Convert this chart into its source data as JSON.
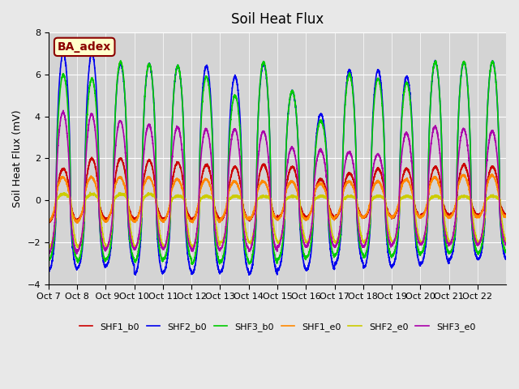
{
  "title": "Soil Heat Flux",
  "ylabel": "Soil Heat Flux (mV)",
  "ylim": [
    -4,
    8
  ],
  "yticks": [
    -4,
    -2,
    0,
    2,
    4,
    6,
    8
  ],
  "background_color": "#e8e8e8",
  "plot_bg_color": "#d4d4d4",
  "label_box_text": "BA_adex",
  "label_box_facecolor": "#ffffcc",
  "label_box_edgecolor": "#8b0000",
  "label_box_textcolor": "#8b0000",
  "series": [
    {
      "name": "SHF1_b0",
      "color": "#cc0000",
      "lw": 1.2
    },
    {
      "name": "SHF2_b0",
      "color": "#0000ee",
      "lw": 1.2
    },
    {
      "name": "SHF3_b0",
      "color": "#00cc00",
      "lw": 1.2
    },
    {
      "name": "SHF1_e0",
      "color": "#ff8800",
      "lw": 1.2
    },
    {
      "name": "SHF2_e0",
      "color": "#cccc00",
      "lw": 1.2
    },
    {
      "name": "SHF3_e0",
      "color": "#aa00aa",
      "lw": 1.2
    }
  ],
  "xtick_labels": [
    "Oct 7",
    "Oct 8",
    " Oct 9",
    "Oct 10",
    "Oct 11",
    "Oct 12",
    "Oct 13",
    "Oct 14",
    "Oct 15",
    "Oct 16",
    "Oct 17",
    "Oct 18",
    "Oct 19",
    "Oct 20",
    "Oct 21",
    "Oct 22"
  ],
  "n_days": 16,
  "start_day": 7
}
